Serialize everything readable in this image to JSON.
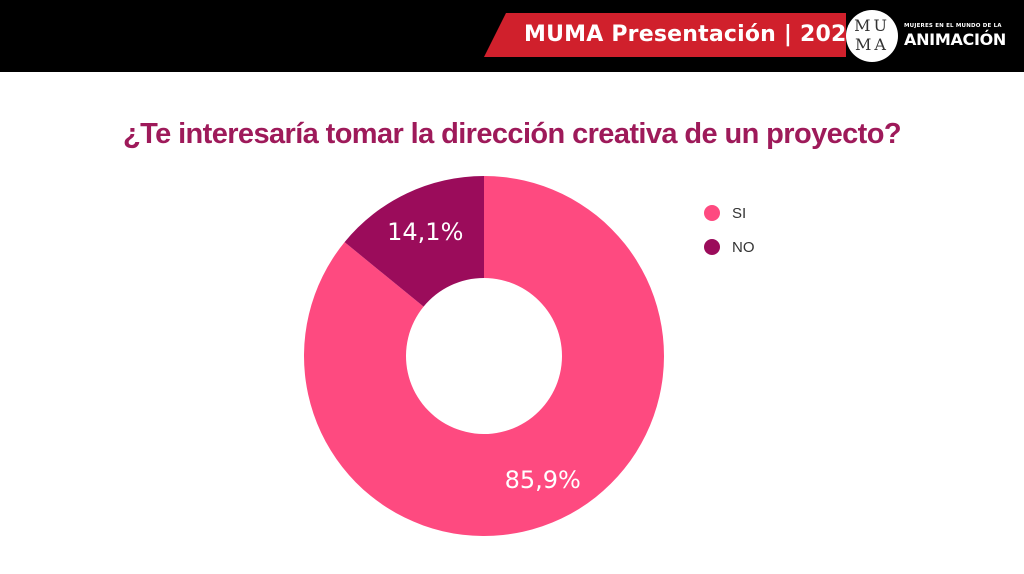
{
  "header": {
    "banner_text": "MUMA Presentación | 2022",
    "banner_color": "#d0202c",
    "logo_letters_top": "MU",
    "logo_letters_bottom": "MA",
    "logo_subtitle": "MUJERES EN EL MUNDO DE LA",
    "logo_title": "ANIMACIÓN"
  },
  "chart_data": {
    "type": "pie",
    "style": "donut",
    "title": "¿Te interesaría tomar la dirección creativa de un proyecto?",
    "legend_placement": "right",
    "slices": [
      {
        "label": "SI",
        "value": 85.9,
        "display": "85,9%",
        "color": "#fe4a80"
      },
      {
        "label": "NO",
        "value": 14.1,
        "display": "14,1%",
        "color": "#9b0c5b"
      }
    ]
  }
}
